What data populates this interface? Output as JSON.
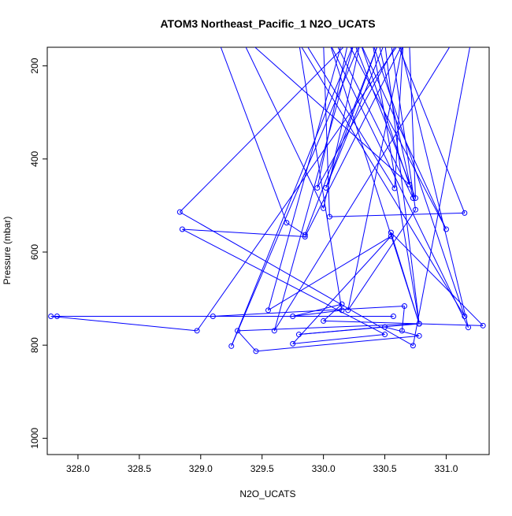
{
  "chart_data": {
    "type": "line",
    "title": "ATOM3 Northeast_Pacific_1 N2O_UCATS",
    "xlabel": "N2O_UCATS",
    "ylabel": "Pressure (mbar)",
    "xlim": [
      327.75,
      331.35
    ],
    "ylim": [
      1035,
      160
    ],
    "y_inverted": true,
    "x_ticks": [
      328.0,
      328.5,
      329.0,
      329.5,
      330.0,
      330.5,
      331.0
    ],
    "x_tick_labels": [
      "328.0",
      "328.5",
      "329.0",
      "329.5",
      "330.0",
      "330.5",
      "331.0"
    ],
    "y_ticks": [
      200,
      400,
      600,
      800,
      1000
    ],
    "y_tick_labels": [
      "200",
      "400",
      "600",
      "800",
      "1000"
    ],
    "grid": false,
    "legend": "none",
    "series_color": "#0000ff",
    "series": [
      {
        "x": [
          329.15,
          329.7,
          329.85,
          330.45,
          330.7,
          330.75,
          330.25,
          330.0,
          330.05,
          331.15,
          330.6,
          329.95,
          330.2,
          329.4,
          330.7,
          330.3,
          331.0,
          330.2,
          328.83,
          330.73,
          331.2,
          330.45,
          330.73,
          330.1,
          329.85,
          330.58,
          330.65,
          330.55,
          330.75,
          330.2,
          330.65,
          329.85,
          328.85,
          330.5,
          329.75,
          330.55,
          329.55,
          330.15,
          331.05,
          329.6,
          330.25,
          329.25,
          330.3,
          330.0,
          329.35,
          330.45,
          330.02,
          330.5,
          330.78,
          329.8,
          330.5,
          330.78,
          329.45,
          329.3,
          330.78,
          330.55,
          331.3,
          330.0,
          330.15,
          329.75,
          330.15,
          329.8,
          331.15,
          330.4,
          330.78,
          330.05,
          331.18,
          330.62,
          328.97,
          327.78,
          330.57,
          327.83,
          329.1,
          330.66,
          330.64
        ],
        "y": [
          150,
          537,
          563,
          150,
          150,
          484,
          150,
          150,
          524,
          516,
          150,
          462,
          150,
          150,
          455,
          150,
          551,
          150,
          514,
          801,
          150,
          150,
          484,
          150,
          150,
          463,
          150,
          150,
          509,
          725,
          150,
          567,
          551,
          777,
          797,
          566,
          725,
          150,
          150,
          769,
          150,
          802,
          150,
          506,
          150,
          150,
          462,
          150,
          754,
          777,
          761,
          780,
          813,
          769,
          754,
          558,
          758,
          748,
          712,
          738,
          725,
          150,
          738,
          150,
          754,
          150,
          762,
          150,
          769,
          738,
          738,
          738,
          738,
          716,
          769
        ]
      }
    ]
  }
}
